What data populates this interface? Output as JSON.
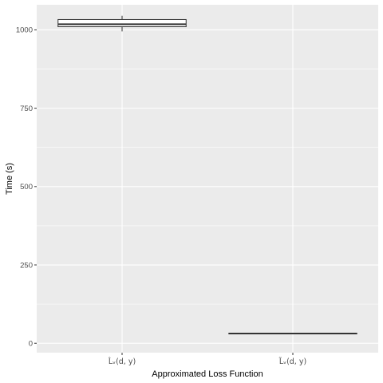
{
  "chart_data": {
    "type": "boxplot",
    "title": "",
    "xlabel": "Approximated Loss Function",
    "ylabel": "Time (s)",
    "ylim": [
      -30,
      1080
    ],
    "yticks": [
      0,
      250,
      500,
      750,
      1000
    ],
    "y_tick_labels": [
      "0",
      "250",
      "500",
      "750",
      "1000"
    ],
    "categories": [
      "L̂ᵥ(d, y)",
      "L̃ᵥ(d, y)"
    ],
    "boxes": [
      {
        "category": "L̂ᵥ(d, y)",
        "min": 995,
        "q1": 1010,
        "median": 1018,
        "q3": 1033,
        "max": 1045
      },
      {
        "category": "L̃ᵥ(d, y)",
        "min": 30,
        "q1": 30,
        "median": 31,
        "q3": 32,
        "max": 33
      }
    ],
    "grid": true,
    "legend": "none",
    "colors": {
      "panel": "#ebebeb",
      "grid_major": "#ffffff",
      "box_fill": "#ffffff",
      "box_line": "#333333",
      "tick": "#333333",
      "tick_label": "#4d4d4d"
    }
  }
}
